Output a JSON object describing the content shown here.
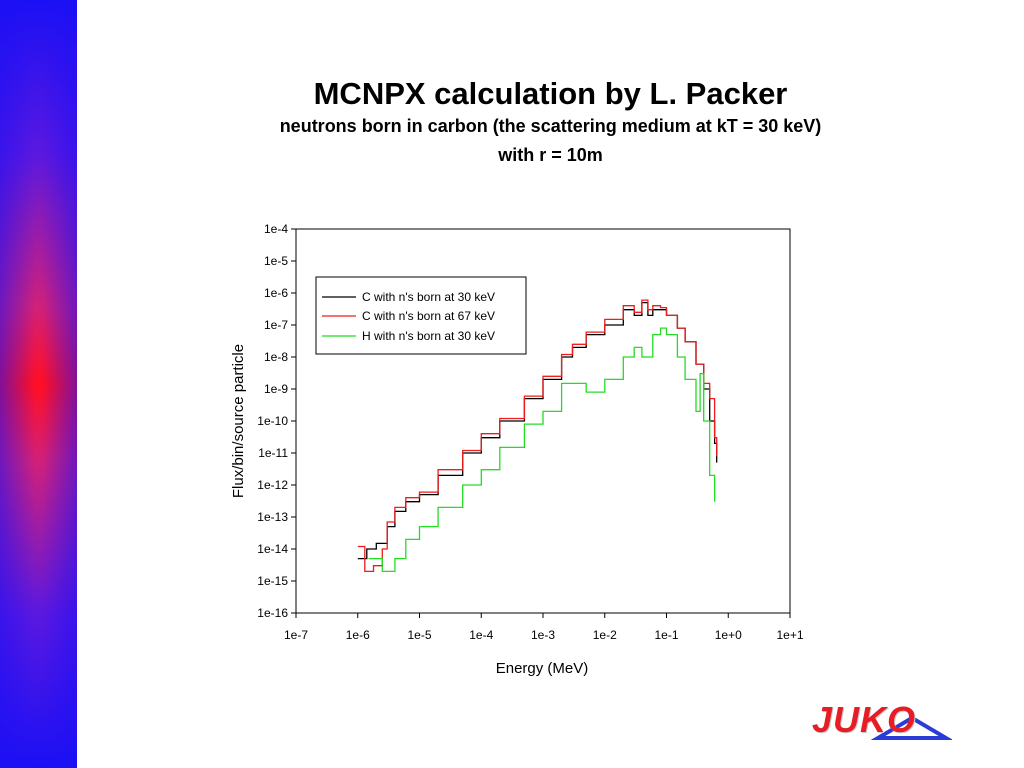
{
  "slide": {
    "title": "MCNPX calculation by L. Packer",
    "subtitle": "neutrons born in carbon  (the scattering medium at kT = 30 keV)",
    "subtitle2": "with r = 10m",
    "logo_text": "JUKO"
  },
  "colors": {
    "sidebar_top": "#1a10f5",
    "sidebar_mid": "#ff0e24",
    "logo_red": "#e81c24",
    "logo_blue": "#2a3bd8"
  },
  "chart_data": {
    "type": "line",
    "x_scale": "log",
    "y_scale": "log",
    "xlabel": "Energy (MeV)",
    "ylabel": "Flux/bin/source particle",
    "xlim": [
      1e-07,
      10
    ],
    "ylim": [
      1e-16,
      0.0001
    ],
    "x_ticks": [
      "1e-7",
      "1e-6",
      "1e-5",
      "1e-4",
      "1e-3",
      "1e-2",
      "1e-1",
      "1e+0",
      "1e+1"
    ],
    "y_ticks": [
      "1e-4",
      "1e-5",
      "1e-6",
      "1e-7",
      "1e-8",
      "1e-9",
      "1e-10",
      "1e-11",
      "1e-12",
      "1e-13",
      "1e-14",
      "1e-15",
      "1e-16"
    ],
    "legend_position": "top-left",
    "series": [
      {
        "name": "C with n's born at 30 keV",
        "color": "#000000",
        "x": [
          1e-06,
          1.4e-06,
          2e-06,
          3e-06,
          4e-06,
          6e-06,
          1e-05,
          2e-05,
          5e-05,
          0.0001,
          0.0002,
          0.0005,
          0.001,
          0.002,
          0.003,
          0.005,
          0.01,
          0.02,
          0.03,
          0.04,
          0.05,
          0.06,
          0.08,
          0.1,
          0.15,
          0.2,
          0.3,
          0.4,
          0.5,
          0.6,
          0.65
        ],
        "y": [
          5e-15,
          1e-14,
          1.5e-14,
          5e-14,
          1.5e-13,
          3e-13,
          5e-13,
          2e-12,
          1e-11,
          3e-11,
          1e-10,
          5e-10,
          2e-09,
          1e-08,
          2e-08,
          5e-08,
          1e-07,
          3e-07,
          2e-07,
          5e-07,
          2e-07,
          3e-07,
          3e-07,
          2e-07,
          8e-08,
          3e-08,
          6e-09,
          1e-09,
          1e-10,
          2e-11,
          5e-12
        ]
      },
      {
        "name": "C with n's born at 67 keV",
        "color": "#ee1c1c",
        "x": [
          1e-06,
          1.3e-06,
          1.8e-06,
          2.5e-06,
          3e-06,
          4e-06,
          6e-06,
          1e-05,
          2e-05,
          5e-05,
          0.0001,
          0.0002,
          0.0005,
          0.001,
          0.002,
          0.003,
          0.005,
          0.01,
          0.02,
          0.03,
          0.04,
          0.05,
          0.06,
          0.08,
          0.1,
          0.15,
          0.2,
          0.3,
          0.4,
          0.5,
          0.6,
          0.65
        ],
        "y": [
          1.2e-14,
          2e-15,
          3e-15,
          1e-14,
          7e-14,
          2e-13,
          4e-13,
          6e-13,
          3e-12,
          1.2e-11,
          4e-11,
          1.2e-10,
          6e-10,
          2.5e-09,
          1.2e-08,
          2.5e-08,
          6e-08,
          1.5e-07,
          4e-07,
          2.5e-07,
          6e-07,
          3e-07,
          4e-07,
          3.5e-07,
          2e-07,
          8e-08,
          3e-08,
          6e-09,
          1.5e-09,
          5e-10,
          3e-11,
          8e-12
        ]
      },
      {
        "name": "H with n's born at 30 keV",
        "color": "#22dd22",
        "x": [
          1.5e-06,
          2.5e-06,
          4e-06,
          6e-06,
          1e-05,
          2e-05,
          5e-05,
          0.0001,
          0.0002,
          0.0005,
          0.001,
          0.002,
          0.005,
          0.01,
          0.02,
          0.03,
          0.04,
          0.06,
          0.08,
          0.1,
          0.15,
          0.2,
          0.3,
          0.35,
          0.4,
          0.5,
          0.6
        ],
        "y": [
          5e-15,
          2e-15,
          5e-15,
          2e-14,
          5e-14,
          2e-13,
          1e-12,
          3e-12,
          1.5e-11,
          8e-11,
          2e-10,
          1.5e-09,
          8e-10,
          2e-09,
          1e-08,
          2e-08,
          1e-08,
          5e-08,
          8e-08,
          5e-08,
          1e-08,
          2e-09,
          2e-10,
          3e-09,
          1e-10,
          2e-12,
          3e-13
        ]
      }
    ]
  }
}
